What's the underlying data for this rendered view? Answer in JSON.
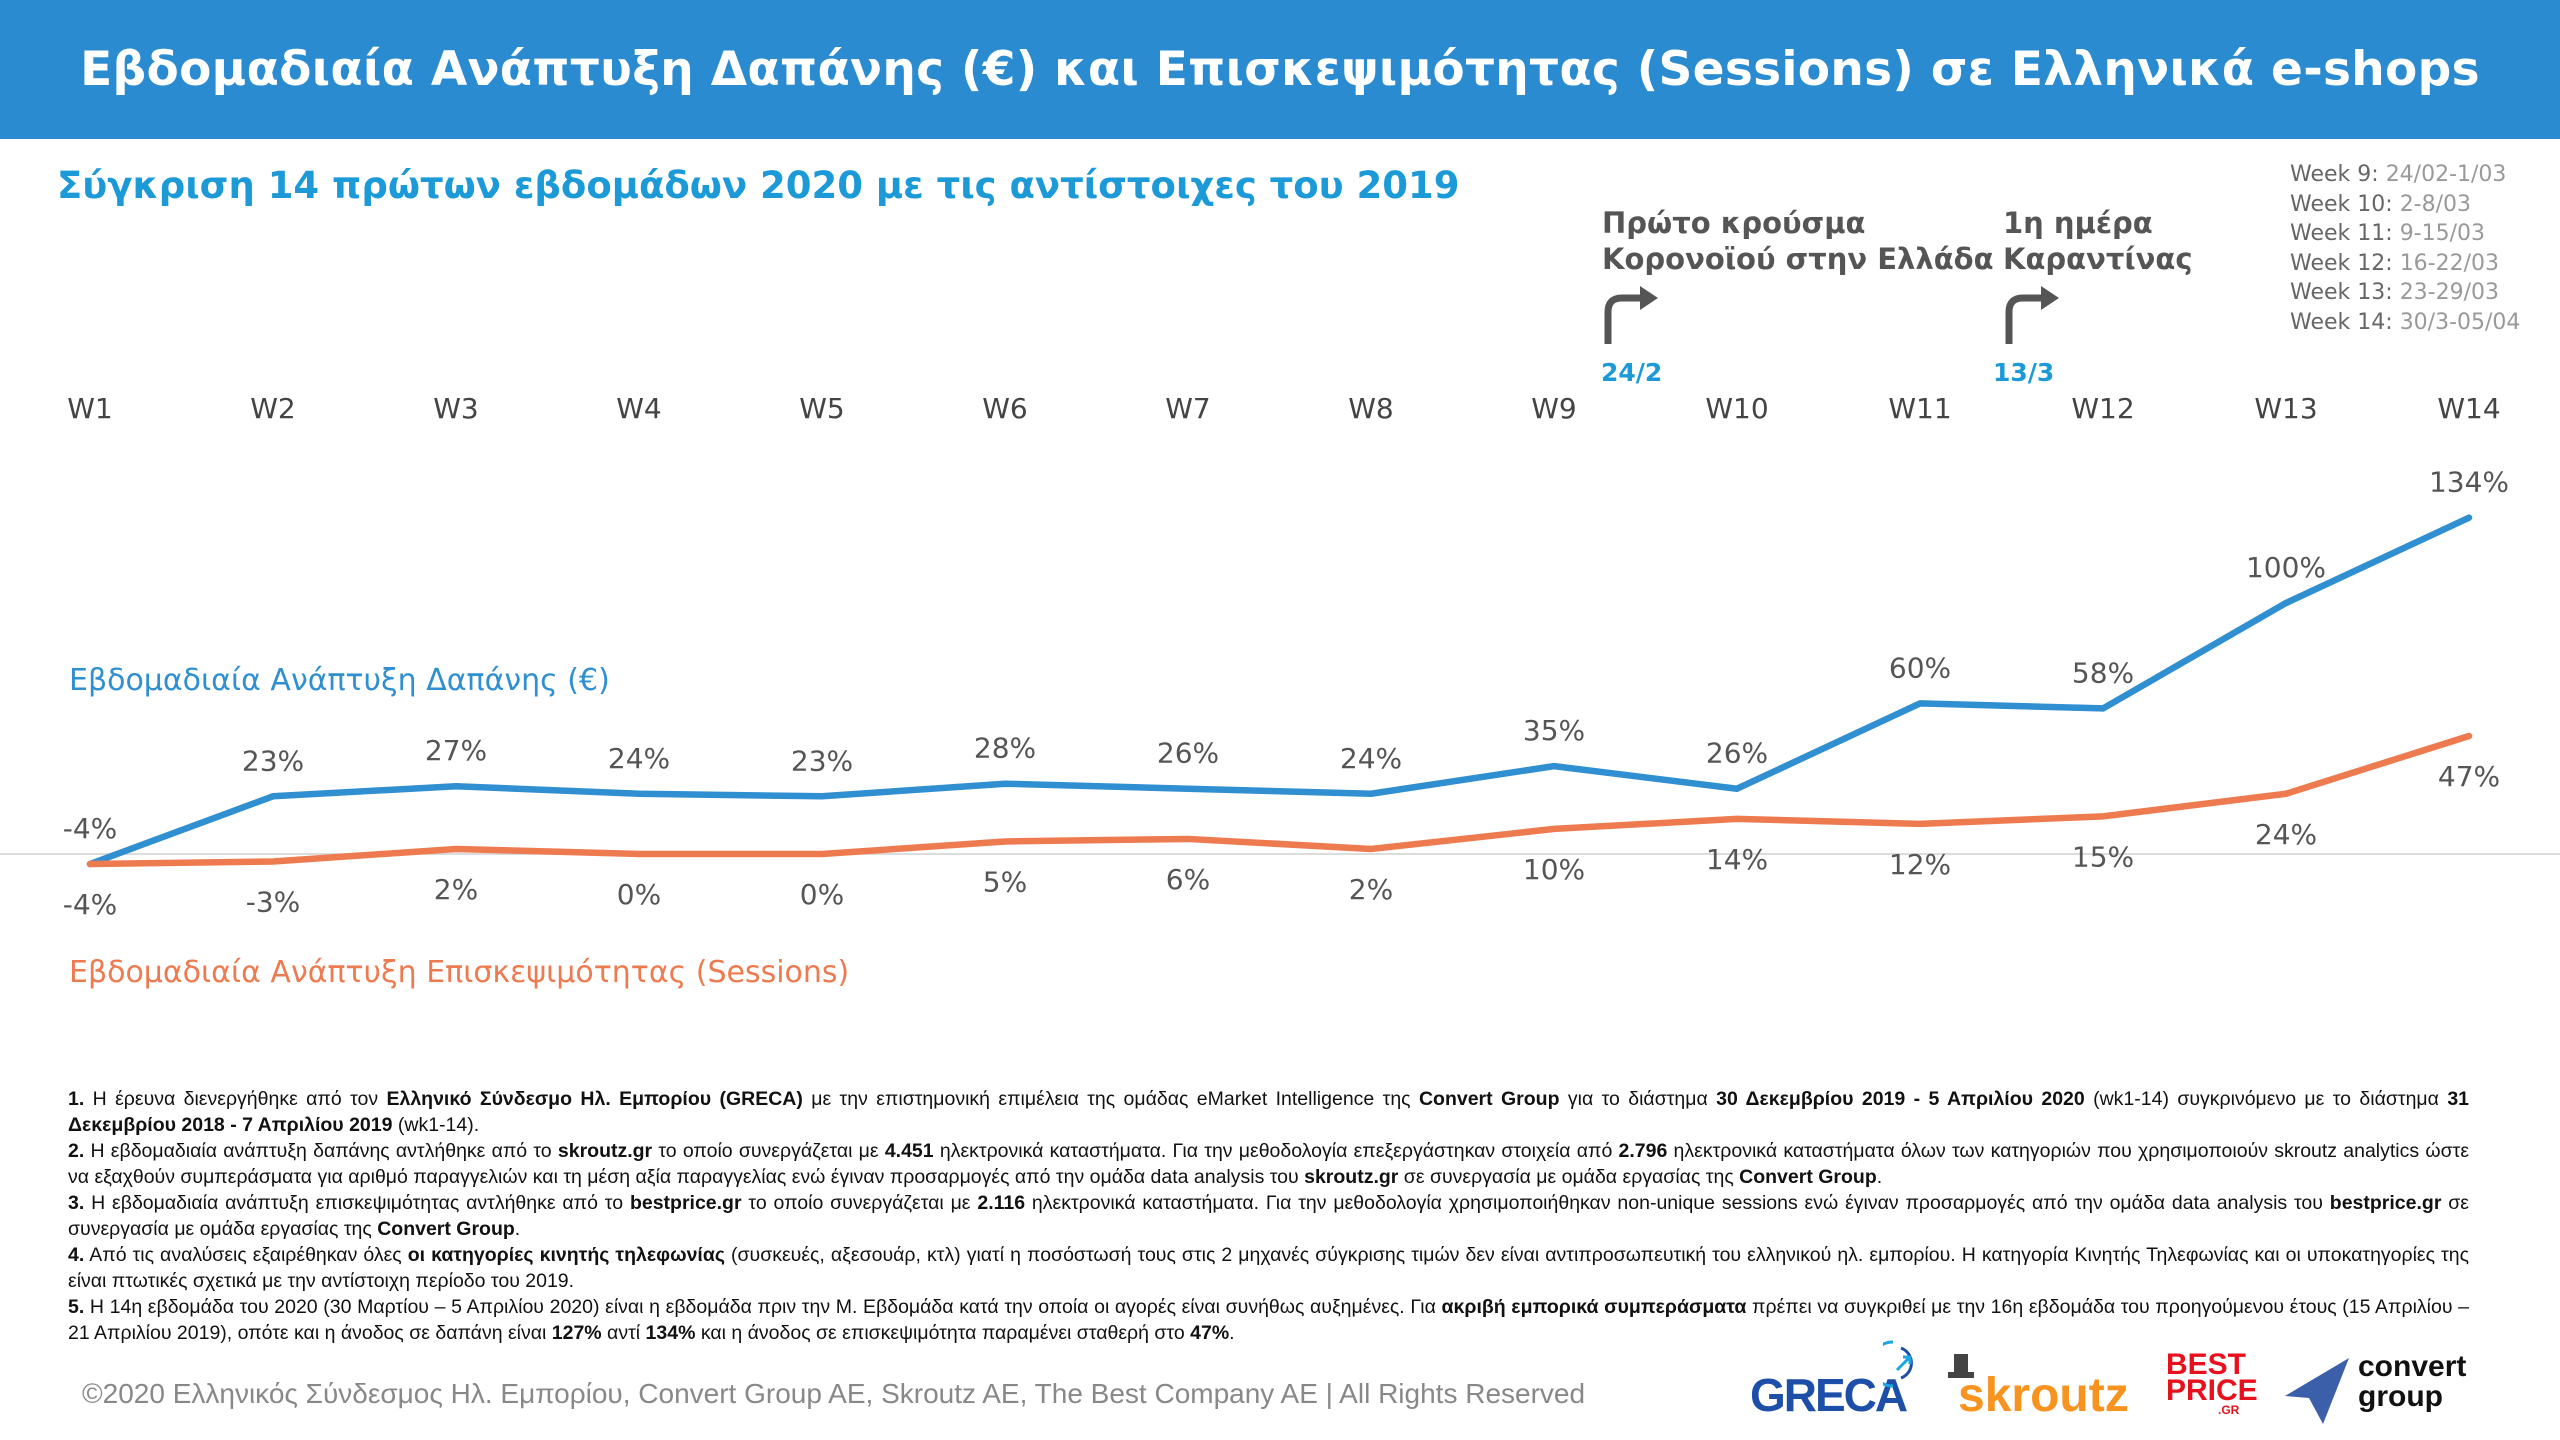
{
  "header": {
    "title": "Εβδομαδιαία Ανάπτυξη Δαπάνης (€) και Επισκεψιμότητας (Sessions) σε Ελληνικά e-shops"
  },
  "subtitle": "Σύγκριση 14 πρώτων εβδομάδων 2020 με τις αντίστοιχες του 2019",
  "week_legend": [
    {
      "label": "Week 9:",
      "value": "24/02-1/03"
    },
    {
      "label": "Week 10:",
      "value": "2-8/03"
    },
    {
      "label": "Week 11:",
      "value": "9-15/03"
    },
    {
      "label": "Week 12:",
      "value": "16-22/03"
    },
    {
      "label": "Week 13:",
      "value": "23-29/03"
    },
    {
      "label": "Week 14:",
      "value": "30/3-05/04"
    }
  ],
  "annotations": [
    {
      "line1": "Πρώτο κρούσμα",
      "line2": "Κορονοϊού στην Ελλάδα",
      "date": "24/2",
      "icon": "turn-right-arrow-icon"
    },
    {
      "line1": "1η ημέρα",
      "line2": "Καραντίνας",
      "date": "13/3",
      "icon": "turn-right-arrow-icon"
    }
  ],
  "chart_data": {
    "type": "line",
    "categories": [
      "W1",
      "W2",
      "W3",
      "W4",
      "W5",
      "W6",
      "W7",
      "W8",
      "W9",
      "W10",
      "W11",
      "W12",
      "W13",
      "W14"
    ],
    "series": [
      {
        "name": "Εβδομαδιαία Ανάπτυξη Δαπάνης (€)",
        "color": "#2f8fd0",
        "values": [
          -4,
          23,
          27,
          24,
          23,
          28,
          26,
          24,
          35,
          26,
          60,
          58,
          100,
          134
        ]
      },
      {
        "name": "Εβδομαδιαία Ανάπτυξη Επισκεψιμότητας (Sessions)",
        "color": "#ee7a4f",
        "values": [
          -4,
          -3,
          2,
          0,
          0,
          5,
          6,
          2,
          10,
          14,
          12,
          15,
          24,
          47
        ]
      }
    ],
    "unit": "%",
    "baseline": 0,
    "xlabel": "",
    "ylabel": "",
    "legend": "inline-left",
    "grid": false
  },
  "footnotes": [
    [
      {
        "t": "1.",
        "b": true
      },
      {
        "t": " Η έρευνα διενεργήθηκε από τον "
      },
      {
        "t": "Ελληνικό Σύνδεσμο Ηλ. Εμπορίου (GRECA)",
        "b": true
      },
      {
        "t": " με την επιστημονική επιμέλεια της ομάδας eMarket Intelligence της "
      },
      {
        "t": "Convert Group",
        "b": true
      },
      {
        "t": " για το διάστημα "
      },
      {
        "t": "30 Δεκεμβρίου 2019 - 5 Απριλίου 2020",
        "b": true
      },
      {
        "t": " (wk1-14) συγκρινόμενο με το διάστημα "
      },
      {
        "t": "31 Δεκεμβρίου 2018 - 7 Απριλίου 2019",
        "b": true
      },
      {
        "t": " (wk1-14)."
      }
    ],
    [
      {
        "t": "2.",
        "b": true
      },
      {
        "t": " Η εβδομαδιαία ανάπτυξη δαπάνης αντλήθηκε από το "
      },
      {
        "t": "skroutz.gr",
        "b": true
      },
      {
        "t": " το οποίο συνεργάζεται με "
      },
      {
        "t": "4.451",
        "b": true
      },
      {
        "t": " ηλεκτρονικά καταστήματα. Για την μεθοδολογία επεξεργάστηκαν στοιχεία από "
      },
      {
        "t": "2.796",
        "b": true
      },
      {
        "t": " ηλεκτρονικά καταστήματα όλων των κατηγοριών που χρησιμοποιούν skroutz analytics ώστε να εξαχθούν συμπεράσματα για αριθμό παραγγελιών και τη μέση αξία παραγγελίας ενώ έγιναν προσαρμογές από την ομάδα data analysis του "
      },
      {
        "t": "skroutz.gr",
        "b": true
      },
      {
        "t": " σε συνεργασία με ομάδα εργασίας της "
      },
      {
        "t": "Convert Group",
        "b": true
      },
      {
        "t": "."
      }
    ],
    [
      {
        "t": "3.",
        "b": true
      },
      {
        "t": " Η εβδομαδιαία ανάπτυξη επισκεψιμότητας αντλήθηκε από το "
      },
      {
        "t": "bestprice.gr",
        "b": true
      },
      {
        "t": " το οποίο συνεργάζεται με "
      },
      {
        "t": "2.116",
        "b": true
      },
      {
        "t": " ηλεκτρονικά καταστήματα. Για την μεθοδολογία χρησιμοποιήθηκαν non-unique sessions ενώ έγιναν προσαρμογές από την ομάδα data analysis του "
      },
      {
        "t": "bestprice.gr",
        "b": true
      },
      {
        "t": " σε συνεργασία με ομάδα εργασίας της "
      },
      {
        "t": "Convert Group",
        "b": true
      },
      {
        "t": "."
      }
    ],
    [
      {
        "t": "4.",
        "b": true
      },
      {
        "t": " Από τις αναλύσεις εξαιρέθηκαν όλες "
      },
      {
        "t": "οι κατηγορίες κινητής τηλεφωνίας",
        "b": true
      },
      {
        "t": " (συσκευές, αξεσουάρ, κτλ) γιατί η ποσόστωσή τους στις 2 μηχανές σύγκρισης τιμών δεν είναι αντιπροσωπευτική του ελληνικού ηλ. εμπορίου. Η κατηγορία Κινητής Τηλεφωνίας και οι υποκατηγορίες της είναι πτωτικές σχετικά με την αντίστοιχη περίοδο του 2019."
      }
    ],
    [
      {
        "t": "5.",
        "b": true
      },
      {
        "t": " Η 14η εβδομάδα του 2020 (30 Μαρτίου – 5 Απριλίου 2020) είναι η εβδομάδα πριν την Μ. Εβδομάδα κατά την οποία οι αγορές είναι συνήθως αυξημένες. Για "
      },
      {
        "t": "ακριβή εμπορικά συμπεράσματα",
        "b": true
      },
      {
        "t": " πρέπει να συγκριθεί με την 16η εβδομάδα του προηγούμενου έτους (15 Απριλίου – 21 Απριλίου 2019), οπότε και η άνοδος σε δαπάνη είναι "
      },
      {
        "t": "127%",
        "b": true
      },
      {
        "t": " αντί "
      },
      {
        "t": "134%",
        "b": true
      },
      {
        "t": " και η άνοδος σε επισκεψιμότητα παραμένει σταθερή στο "
      },
      {
        "t": "47%",
        "b": true
      },
      {
        "t": "."
      }
    ]
  ],
  "footer": {
    "copyright": "©2020 Ελληνικός Σύνδεσμος Ηλ. Εμπορίου, Convert Group AE, Skroutz AE, The Best Company AE | All Rights Reserved"
  },
  "logos": {
    "greca": "GRECA",
    "skroutz": "skroutz",
    "bestprice_1": "BEST",
    "bestprice_2": "PRICE",
    "bestprice_3": ".GR",
    "convert_1": "convert",
    "convert_2": "group"
  }
}
